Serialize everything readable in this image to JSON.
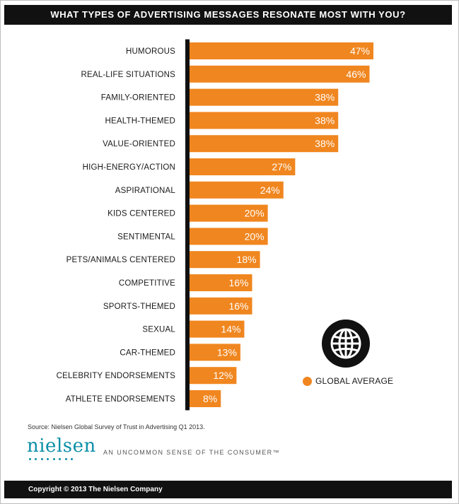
{
  "chart_data": {
    "type": "bar",
    "orientation": "horizontal",
    "title": "WHAT TYPES OF ADVERTISING MESSAGES RESONATE MOST WITH YOU?",
    "categories": [
      "HUMOROUS",
      "REAL-LIFE SITUATIONS",
      "FAMILY-ORIENTED",
      "HEALTH-THEMED",
      "VALUE-ORIENTED",
      "HIGH-ENERGY/ACTION",
      "ASPIRATIONAL",
      "KIDS CENTERED",
      "SENTIMENTAL",
      "PETS/ANIMALS CENTERED",
      "COMPETITIVE",
      "SPORTS-THEMED",
      "SEXUAL",
      "CAR-THEMED",
      "CELEBRITY ENDORSEMENTS",
      "ATHLETE ENDORSEMENTS"
    ],
    "series": [
      {
        "name": "GLOBAL AVERAGE",
        "values": [
          47,
          46,
          38,
          38,
          38,
          27,
          24,
          20,
          20,
          18,
          16,
          16,
          14,
          13,
          12,
          8
        ]
      }
    ],
    "value_labels": [
      "47%",
      "46%",
      "38%",
      "38%",
      "38%",
      "27%",
      "24%",
      "20%",
      "20%",
      "18%",
      "16%",
      "16%",
      "14%",
      "13%",
      "12%",
      "8%"
    ],
    "xlim": [
      0,
      47
    ],
    "legend_position": "bottom-right",
    "grid": false,
    "bar_color": "#f0861f",
    "axis_color": "#111111"
  },
  "icons": {
    "globe": "globe-icon"
  },
  "source": "Source: Nielsen Global Survey of Trust in Advertising Q1 2013.",
  "brand": {
    "logo": "nielsen",
    "tagline": "AN UNCOMMON SENSE OF THE CONSUMER™"
  },
  "footer": {
    "copyright": "Copyright © 2013 The Nielsen Company"
  }
}
